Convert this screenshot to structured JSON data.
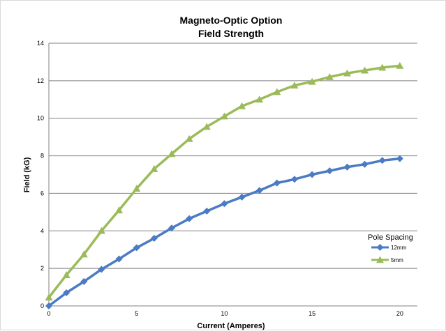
{
  "chart_data": {
    "type": "line",
    "title": [
      "Magneto-Optic Option",
      "Field Strength"
    ],
    "xlabel": "Current (Amperes)",
    "ylabel": "Field (kG)",
    "xlim": [
      0,
      21
    ],
    "ylim": [
      0,
      14
    ],
    "xticks": [
      0,
      5,
      10,
      15,
      20
    ],
    "yticks": [
      0,
      2,
      4,
      6,
      8,
      10,
      12,
      14
    ],
    "grid": "horizontal",
    "legend_title": "Pole Spacing",
    "legend_position": "right",
    "x": [
      0,
      1,
      2,
      3,
      4,
      5,
      6,
      7,
      8,
      9,
      10,
      11,
      12,
      13,
      14,
      15,
      16,
      17,
      18,
      19,
      20
    ],
    "series": [
      {
        "name": "12mm",
        "color": "#4a7bc4",
        "marker": "diamond",
        "values": [
          0,
          0.7,
          1.3,
          1.95,
          2.5,
          3.1,
          3.6,
          4.15,
          4.65,
          5.05,
          5.45,
          5.8,
          6.15,
          6.55,
          6.75,
          7.0,
          7.2,
          7.4,
          7.55,
          7.75,
          7.85
        ]
      },
      {
        "name": "5mm",
        "color": "#9bbb59",
        "marker": "triangle",
        "values": [
          0.45,
          1.65,
          2.75,
          4.0,
          5.1,
          6.25,
          7.3,
          8.1,
          8.9,
          9.55,
          10.1,
          10.65,
          11.0,
          11.4,
          11.75,
          11.95,
          12.2,
          12.4,
          12.55,
          12.7,
          12.8
        ]
      }
    ]
  }
}
